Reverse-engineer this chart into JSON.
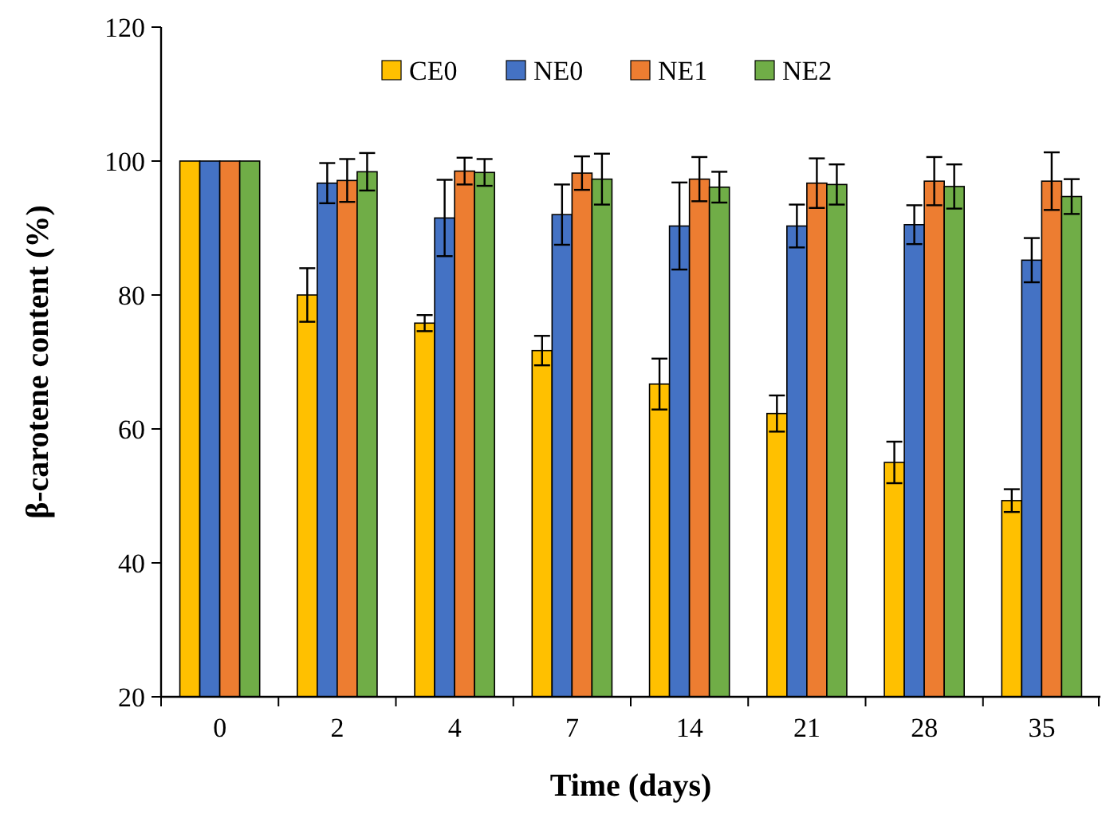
{
  "chart_data": {
    "type": "bar",
    "xlabel": "Time (days)",
    "ylabel": "β-carotene content (%)",
    "categories": [
      "0",
      "2",
      "4",
      "7",
      "14",
      "21",
      "28",
      "35"
    ],
    "series": [
      {
        "name": "CE0",
        "color": "#ffc000",
        "values": [
          100,
          80,
          75.8,
          71.7,
          66.7,
          62.3,
          55,
          49.3
        ],
        "errors": [
          null,
          4,
          1.2,
          2.2,
          3.8,
          2.7,
          3.1,
          1.7
        ]
      },
      {
        "name": "NE0",
        "color": "#4472c4",
        "values": [
          100,
          96.7,
          91.5,
          92,
          90.3,
          90.3,
          90.5,
          85.2
        ],
        "errors": [
          null,
          3,
          5.7,
          4.5,
          6.5,
          3.2,
          2.9,
          3.3
        ]
      },
      {
        "name": "NE1",
        "color": "#ed7d31",
        "values": [
          100,
          97.1,
          98.5,
          98.2,
          97.3,
          96.7,
          97,
          97
        ],
        "errors": [
          null,
          3.2,
          2,
          2.5,
          3.3,
          3.7,
          3.6,
          4.3
        ]
      },
      {
        "name": "NE2",
        "color": "#70ad47",
        "values": [
          100,
          98.4,
          98.3,
          97.3,
          96.1,
          96.5,
          96.2,
          94.7
        ],
        "errors": [
          null,
          2.8,
          2,
          3.8,
          2.3,
          3,
          3.3,
          2.6
        ]
      }
    ],
    "ylim": [
      20,
      120
    ],
    "yticks": [
      20,
      40,
      60,
      80,
      100,
      120
    ],
    "grid": false,
    "legend": "top"
  }
}
